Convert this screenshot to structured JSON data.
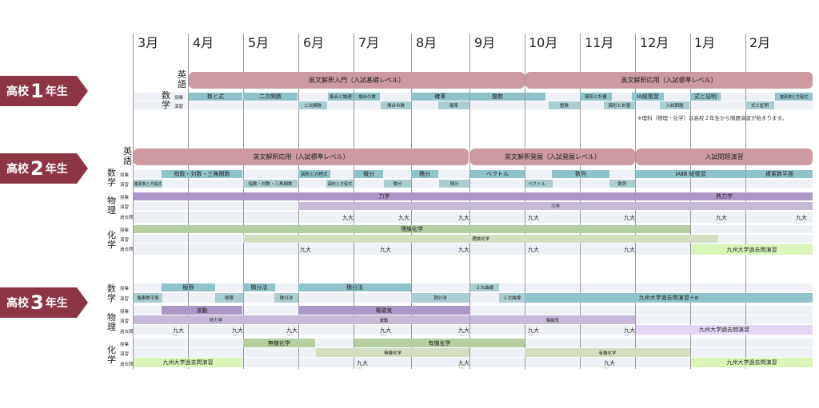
{
  "months": [
    "3月",
    "4月",
    "5月",
    "6月",
    "7月",
    "8月",
    "9月",
    "10月",
    "11月",
    "12月",
    "1月",
    "2月"
  ],
  "grades": [
    {
      "prefix": "高校",
      "num": "1",
      "suffix": "年生"
    },
    {
      "prefix": "高校",
      "num": "2",
      "suffix": "年生"
    },
    {
      "prefix": "高校",
      "num": "3",
      "suffix": "年生"
    }
  ],
  "subjects": {
    "english": "英語",
    "math": "数学",
    "physics": "物理",
    "chemistry": "化学"
  },
  "row_labels": {
    "lesson": "授業",
    "practice": "演習",
    "past": "過去問"
  },
  "kyudai": "九大",
  "y1": {
    "english": [
      "英文解釈入門（入試基礎レベル）",
      "英文解釈応用（入試標準レベル）"
    ],
    "math_lesson": [
      "数と式",
      "二次関数",
      "集合と論理",
      "場合の数",
      "確率",
      "整数",
      "図形と計量",
      "ⅠA総復習",
      "式と証明",
      "複素数と方程式"
    ],
    "math_practice": [
      "二次関数",
      "場合の数",
      "確率",
      "整数",
      "図形と計量",
      "入試問題",
      "式と証明"
    ],
    "note": "※理科（物理・化学）は高校２年生から問題演習が始まります。"
  },
  "y2": {
    "english": [
      "英文解釈応用（入試標準レベル）",
      "英文解釈発展（入試発展レベル）",
      "入試問題演習"
    ],
    "math_lesson": [
      "指数・対数・三角関数",
      "図形と方程式",
      "微分",
      "積分",
      "ベクトル",
      "数列",
      "ⅠAⅡB 総復習",
      "複素数平面"
    ],
    "math_practice": [
      "複素数と方程式",
      "指数・対数・三角関数",
      "図形と方程式",
      "微分",
      "積分",
      "ベクトル",
      "数列"
    ],
    "physics_lesson": [
      "力学",
      "熱力学"
    ],
    "physics_practice": [
      "力学"
    ],
    "chemistry_lesson": [
      "理論化学"
    ],
    "chemistry_practice": [
      "理論化学"
    ],
    "chemistry_past": [
      "九州大学過去問演習"
    ]
  },
  "y3": {
    "math_lesson": [
      "極限",
      "微分法",
      "積分法",
      "２次曲線"
    ],
    "math_practice": [
      "複素数平面",
      "極限",
      "微分法",
      "積分法",
      "２次曲線",
      "九州大学過去問演習＋α"
    ],
    "physics_lesson": [
      "波動",
      "電磁気"
    ],
    "physics_practice": [
      "熱力学",
      "波動",
      "電磁気"
    ],
    "physics_past": [
      "九州大学過去問演習"
    ],
    "chemistry_lesson": [
      "無機化学",
      "有機化学"
    ],
    "chemistry_practice": [
      "無機化学",
      "有機化学"
    ],
    "chemistry_past": [
      "九州大学過去問演習",
      "九州大学過去問演習"
    ]
  }
}
